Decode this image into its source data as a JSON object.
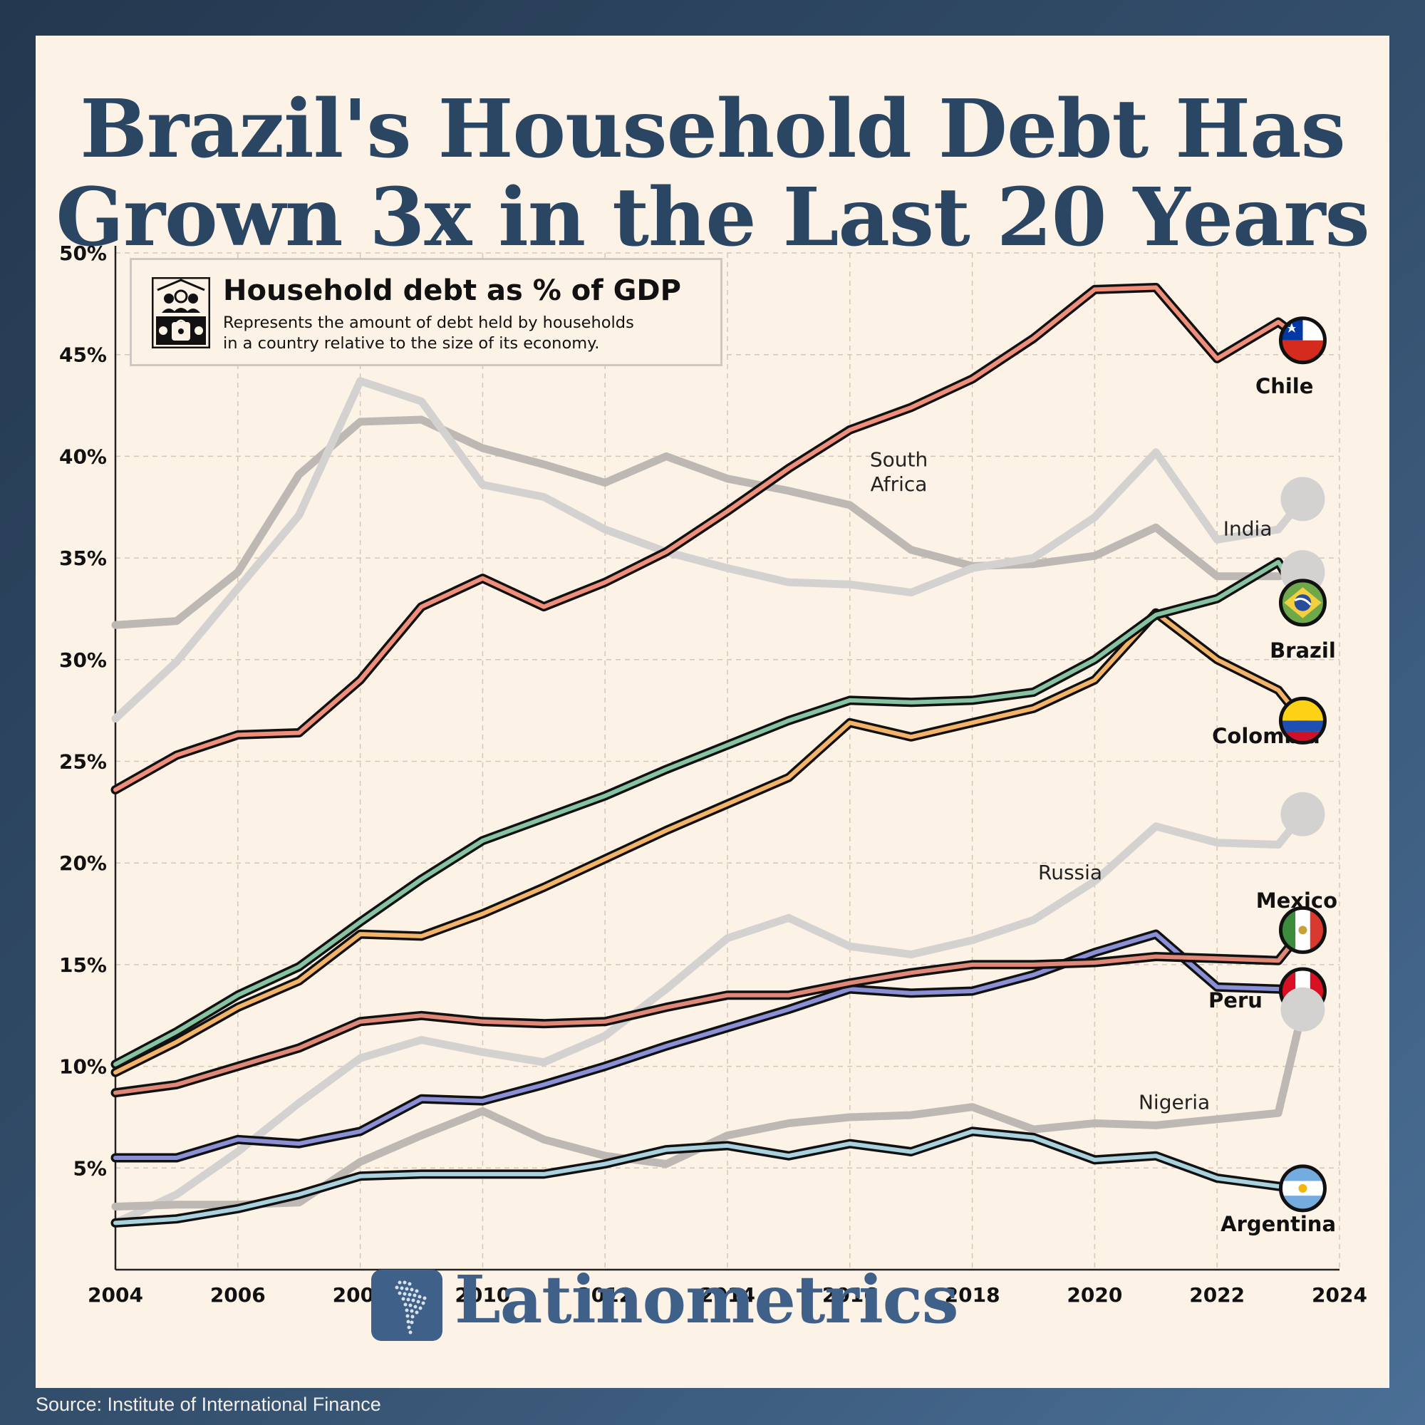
{
  "title": {
    "line1": "Brazil's Household Debt Has",
    "line2": "Grown 3x in the Last 20 Years"
  },
  "legend": {
    "title": "Household debt as % of GDP",
    "line1": "Represents the amount of debt held by households",
    "line2": "in a country relative to the size of its economy."
  },
  "brand": "Latinometrics",
  "source": "Source: Institute of International Finance",
  "chart_data": {
    "type": "line",
    "title": "Household debt as % of GDP",
    "xlabel": "",
    "ylabel": "",
    "xlim": [
      2004,
      2024
    ],
    "ylim": [
      0,
      50
    ],
    "x_ticks": [
      "2004",
      "2006",
      "2008",
      "2010",
      "2012",
      "2014",
      "2016",
      "2018",
      "2020",
      "2022",
      "2024"
    ],
    "y_ticks": [
      "5%",
      "10%",
      "15%",
      "20%",
      "25%",
      "30%",
      "35%",
      "40%",
      "45%",
      "50%"
    ],
    "grid": true,
    "series": [
      {
        "name": "South Africa",
        "color": "#bdb8b3",
        "highlight": false,
        "x": [
          2004,
          2005,
          2006,
          2007,
          2008,
          2009,
          2010,
          2011,
          2012,
          2013,
          2014,
          2015,
          2016,
          2017,
          2018,
          2019,
          2020,
          2021,
          2022,
          2023,
          2023.4
        ],
        "y": [
          31.7,
          31.9,
          34.3,
          39.1,
          41.7,
          41.8,
          40.4,
          39.6,
          38.7,
          40.0,
          38.9,
          38.3,
          37.6,
          35.4,
          34.6,
          34.7,
          35.1,
          36.5,
          34.1,
          34.1,
          34.3
        ]
      },
      {
        "name": "India",
        "color": "#d4d2d0",
        "highlight": false,
        "x": [
          2004,
          2005,
          2006,
          2007,
          2008,
          2009,
          2010,
          2011,
          2012,
          2013,
          2014,
          2015,
          2016,
          2017,
          2018,
          2019,
          2020,
          2021,
          2022,
          2023,
          2023.4
        ],
        "y": [
          27.1,
          29.9,
          33.5,
          37.1,
          43.7,
          42.7,
          38.6,
          38.0,
          36.4,
          35.3,
          34.5,
          33.8,
          33.7,
          33.3,
          34.5,
          35.0,
          37.0,
          40.2,
          35.9,
          36.4,
          37.9
        ]
      },
      {
        "name": "Russia",
        "color": "#d4d2d0",
        "highlight": false,
        "x": [
          2004,
          2005,
          2006,
          2007,
          2008,
          2009,
          2010,
          2011,
          2012,
          2013,
          2014,
          2015,
          2016,
          2017,
          2018,
          2019,
          2020,
          2021,
          2022,
          2023,
          2023.4
        ],
        "y": [
          2.3,
          3.7,
          5.8,
          8.2,
          10.4,
          11.3,
          10.7,
          10.2,
          11.5,
          13.8,
          16.3,
          17.3,
          15.9,
          15.5,
          16.2,
          17.2,
          19.1,
          21.8,
          21.0,
          20.9,
          22.4
        ]
      },
      {
        "name": "Nigeria",
        "color": "#bdb8b3",
        "highlight": false,
        "x": [
          2004,
          2005,
          2006,
          2007,
          2008,
          2009,
          2010,
          2011,
          2012,
          2013,
          2014,
          2015,
          2016,
          2017,
          2018,
          2019,
          2020,
          2021,
          2022,
          2023,
          2023.4
        ],
        "y": [
          3.1,
          3.2,
          3.2,
          3.3,
          5.3,
          6.6,
          7.8,
          6.4,
          5.6,
          5.2,
          6.6,
          7.2,
          7.5,
          7.6,
          8.0,
          6.9,
          7.2,
          7.1,
          7.4,
          7.7,
          12.8
        ]
      },
      {
        "name": "Argentina",
        "color": "#a9d2de",
        "highlight": true,
        "x": [
          2004,
          2005,
          2006,
          2007,
          2008,
          2009,
          2010,
          2011,
          2012,
          2013,
          2014,
          2015,
          2016,
          2017,
          2018,
          2019,
          2020,
          2021,
          2022,
          2023,
          2023.4
        ],
        "y": [
          2.3,
          2.5,
          3.0,
          3.7,
          4.6,
          4.7,
          4.7,
          4.7,
          5.2,
          5.9,
          6.1,
          5.6,
          6.2,
          5.8,
          6.8,
          6.5,
          5.4,
          5.6,
          4.5,
          4.1,
          4.0
        ]
      },
      {
        "name": "Peru",
        "color": "#8a8fd6",
        "highlight": true,
        "x": [
          2004,
          2005,
          2006,
          2007,
          2008,
          2009,
          2010,
          2011,
          2012,
          2013,
          2014,
          2015,
          2016,
          2017,
          2018,
          2019,
          2020,
          2021,
          2022,
          2023,
          2023.4
        ],
        "y": [
          5.5,
          5.5,
          6.4,
          6.2,
          6.8,
          8.4,
          8.3,
          9.1,
          10.0,
          11.0,
          11.9,
          12.8,
          13.8,
          13.6,
          13.7,
          14.5,
          15.6,
          16.5,
          13.9,
          13.8,
          13.7
        ]
      },
      {
        "name": "Mexico",
        "color": "#e08878",
        "highlight": true,
        "x": [
          2004,
          2005,
          2006,
          2007,
          2008,
          2009,
          2010,
          2011,
          2012,
          2013,
          2014,
          2015,
          2016,
          2017,
          2018,
          2019,
          2020,
          2021,
          2022,
          2023,
          2023.4
        ],
        "y": [
          8.7,
          9.1,
          10.0,
          10.9,
          12.2,
          12.5,
          12.2,
          12.1,
          12.2,
          12.9,
          13.5,
          13.5,
          14.1,
          14.6,
          15.0,
          15.0,
          15.1,
          15.4,
          15.3,
          15.2,
          16.7
        ]
      },
      {
        "name": "Colombia",
        "color": "#f3b469",
        "highlight": true,
        "x": [
          2004,
          2005,
          2006,
          2007,
          2008,
          2009,
          2010,
          2011,
          2012,
          2013,
          2014,
          2015,
          2016,
          2017,
          2018,
          2019,
          2020,
          2021,
          2022,
          2023,
          2023.4
        ],
        "y": [
          9.7,
          11.2,
          12.9,
          14.2,
          16.5,
          16.4,
          17.5,
          18.8,
          20.2,
          21.6,
          22.9,
          24.2,
          26.9,
          26.2,
          26.9,
          27.6,
          29.0,
          32.3,
          30.0,
          28.5,
          27.0
        ]
      },
      {
        "name": "Brazil",
        "color": "#86c3a2",
        "highlight": true,
        "x": [
          2004,
          2005,
          2006,
          2007,
          2008,
          2009,
          2010,
          2011,
          2012,
          2013,
          2014,
          2015,
          2016,
          2017,
          2018,
          2019,
          2020,
          2021,
          2022,
          2023,
          2023.4
        ],
        "y": [
          10.1,
          11.7,
          13.5,
          14.9,
          17.1,
          19.2,
          21.1,
          22.2,
          23.3,
          24.6,
          25.8,
          27.0,
          28.0,
          27.9,
          28.0,
          28.4,
          30.0,
          32.2,
          33.0,
          34.8,
          32.8
        ]
      },
      {
        "name": "Chile",
        "color": "#ef8f7b",
        "highlight": true,
        "x": [
          2004,
          2005,
          2006,
          2007,
          2008,
          2009,
          2010,
          2011,
          2012,
          2013,
          2014,
          2015,
          2016,
          2017,
          2018,
          2019,
          2020,
          2021,
          2022,
          2023,
          2023.4
        ],
        "y": [
          23.6,
          25.3,
          26.3,
          26.4,
          29.0,
          32.6,
          34.0,
          32.6,
          33.8,
          35.3,
          37.3,
          39.4,
          41.3,
          42.4,
          43.8,
          45.8,
          48.2,
          48.3,
          44.8,
          46.6,
          45.7
        ]
      }
    ],
    "labels": [
      {
        "text": "Chile",
        "x": 2023.1,
        "y": 43.1,
        "style": "bold"
      },
      {
        "text": "Brazil",
        "x": 2023.4,
        "y": 30.1,
        "style": "bold"
      },
      {
        "text": "Colombia",
        "x": 2022.8,
        "y": 25.9,
        "style": "bold"
      },
      {
        "text": "Mexico",
        "x": 2023.3,
        "y": 17.8,
        "style": "bold"
      },
      {
        "text": "Peru",
        "x": 2022.3,
        "y": 12.9,
        "style": "bold"
      },
      {
        "text": "Argentina",
        "x": 2023.0,
        "y": 1.9,
        "style": "bold"
      },
      {
        "text": "South",
        "x": 2016.8,
        "y": 39.5,
        "style": "plain"
      },
      {
        "text": "Africa",
        "x": 2016.8,
        "y": 38.3,
        "style": "plain"
      },
      {
        "text": "India",
        "x": 2022.5,
        "y": 36.1,
        "style": "plain"
      },
      {
        "text": "Russia",
        "x": 2019.6,
        "y": 19.2,
        "style": "plain"
      },
      {
        "text": "Nigeria",
        "x": 2021.3,
        "y": 7.9,
        "style": "plain"
      }
    ],
    "end_markers": [
      {
        "series": "Chile",
        "flag": "chile",
        "x": 2023.4,
        "y": 45.7
      },
      {
        "series": "India",
        "flag": "gray",
        "x": 2023.4,
        "y": 37.9
      },
      {
        "series": "South Africa",
        "flag": "gray",
        "x": 2023.4,
        "y": 34.3
      },
      {
        "series": "Brazil",
        "flag": "brazil",
        "x": 2023.4,
        "y": 32.8
      },
      {
        "series": "Colombia",
        "flag": "colombia",
        "x": 2023.4,
        "y": 27.0
      },
      {
        "series": "Russia",
        "flag": "gray",
        "x": 2023.4,
        "y": 22.4
      },
      {
        "series": "Mexico",
        "flag": "mexico",
        "x": 2023.4,
        "y": 16.7
      },
      {
        "series": "Peru",
        "flag": "peru",
        "x": 2023.4,
        "y": 13.7
      },
      {
        "series": "Nigeria",
        "flag": "gray",
        "x": 2023.4,
        "y": 12.8
      },
      {
        "series": "Argentina",
        "flag": "argentina",
        "x": 2023.4,
        "y": 4.0
      }
    ]
  }
}
